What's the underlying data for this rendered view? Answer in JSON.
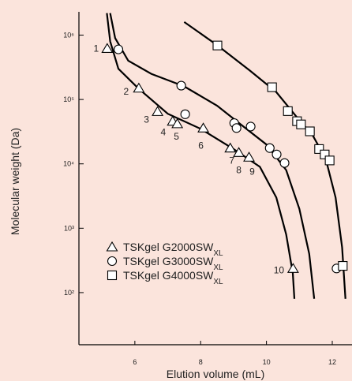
{
  "chart_data": {
    "type": "scatter",
    "y_label": "Molecular weight (Da)",
    "x_label": "Elution volume (mL)",
    "y_scale": "log",
    "xlim": [
      4.3,
      12.6
    ],
    "ylim": [
      15.5,
      2300000
    ],
    "xticks": [
      6,
      8,
      10,
      12
    ],
    "yticks": [
      {
        "value": 100,
        "label": "10²"
      },
      {
        "value": 1000,
        "label": "10³"
      },
      {
        "value": 10000,
        "label": "10⁴"
      },
      {
        "value": 100000,
        "label": "10⁵"
      },
      {
        "value": 1000000,
        "label": "10⁶"
      }
    ],
    "series": [
      {
        "name": "TSKgel G2000SWXL",
        "color": "#000000",
        "marker": "triangle",
        "x": [
          5.16,
          6.12,
          6.69,
          7.15,
          7.29,
          8.08,
          8.9,
          9.16,
          9.47,
          10.81
        ],
        "values": [
          620000,
          150000,
          65000,
          46000,
          42000,
          36000,
          17600,
          15000,
          12700,
          237
        ],
        "point_labels": [
          "1",
          "2",
          "3",
          "4",
          "5",
          "6",
          "7",
          "8",
          "9",
          "10"
        ],
        "curve": {
          "x": [
            5.15,
            5.25,
            5.5,
            6.1,
            7,
            8,
            9,
            9.8,
            10.3,
            10.6,
            10.8,
            10.85
          ],
          "values": [
            2200000,
            800000,
            300000,
            150000,
            60000,
            35000,
            17000,
            9000,
            3000,
            800,
            200,
            80
          ]
        }
      },
      {
        "name": "TSKgel G3000SWXL",
        "color": "#000000",
        "marker": "circle",
        "x": [
          5.5,
          7.41,
          7.53,
          9.02,
          9.09,
          9.52,
          10.1,
          10.31,
          10.55,
          12.13
        ],
        "values": [
          600000,
          164000,
          59000,
          43000,
          36000,
          38000,
          17600,
          14000,
          10300,
          237
        ],
        "curve": {
          "x": [
            5.25,
            5.4,
            5.8,
            6.5,
            7.5,
            8.5,
            9.3,
            10,
            10.6,
            11,
            11.3,
            11.45
          ],
          "values": [
            2200000,
            900000,
            400000,
            250000,
            160000,
            80000,
            38000,
            20000,
            8000,
            2000,
            400,
            80
          ]
        }
      },
      {
        "name": "TSKgel G4000SWXL",
        "color": "#000000",
        "marker": "square",
        "x": [
          8.51,
          10.17,
          10.65,
          10.93,
          11.05,
          11.32,
          11.6,
          11.77,
          11.92,
          12.32
        ],
        "values": [
          690000,
          155000,
          66000,
          46000,
          41000,
          32000,
          17000,
          14000,
          11300,
          260
        ],
        "curve": {
          "x": [
            7.5,
            8.5,
            9.5,
            10.3,
            10.9,
            11.4,
            11.8,
            12.1,
            12.3,
            12.4
          ],
          "values": [
            1600000,
            700000,
            280000,
            130000,
            55000,
            28000,
            12000,
            3000,
            500,
            80
          ]
        }
      }
    ]
  }
}
